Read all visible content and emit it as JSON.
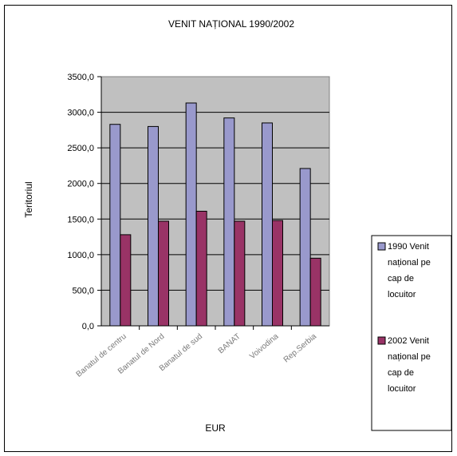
{
  "chart_data": {
    "type": "bar",
    "title": "VENIT NAȚIONAL 1990/2002",
    "xlabel": "EUR",
    "ylabel": "Teritoriul",
    "ylim": [
      0,
      3500
    ],
    "yticks": [
      "0,0",
      "500,0",
      "1000,0",
      "1500,0",
      "2000,0",
      "2500,0",
      "3000,0",
      "3500,0"
    ],
    "categories": [
      "Banatul de centru",
      "Banatul de Nord",
      "Banatul de sud",
      "BANAT",
      "Voivodina",
      "Rep.Serbia"
    ],
    "series": [
      {
        "name": "1990 Venit național pe cap de locuitor",
        "legend_lines": [
          "1990 Venit",
          "național pe",
          "cap de",
          "locuitor"
        ],
        "color": "#9999cc",
        "values": [
          2830,
          2800,
          3130,
          2920,
          2850,
          2210
        ]
      },
      {
        "name": "2002 Venit național pe cap de locuitor",
        "legend_lines": [
          "2002 Venit",
          "național pe",
          "cap de",
          "locuitor"
        ],
        "color": "#993366",
        "values": [
          1280,
          1470,
          1610,
          1470,
          1480,
          950
        ]
      }
    ],
    "grid": true,
    "legend": "right",
    "plot_background": "#c0c0c0"
  }
}
